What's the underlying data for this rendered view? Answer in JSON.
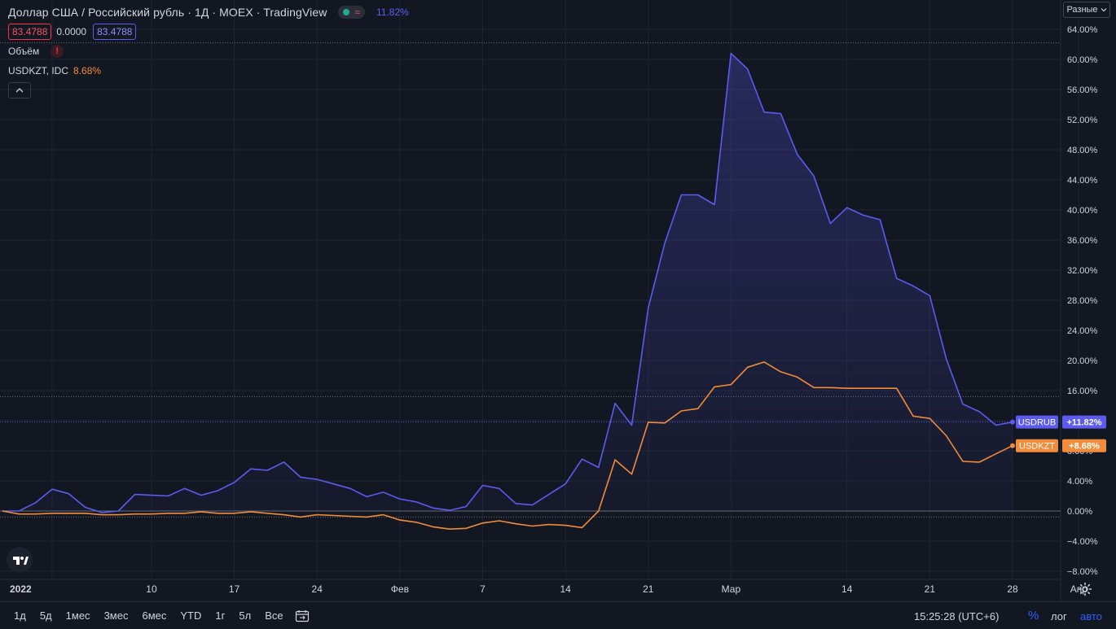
{
  "legend": {
    "title": "Доллар США / Российский рубль · 1Д · MOEX · TradingView",
    "percent": "11.82%",
    "price_red": "83.4788",
    "price_mid": "0.0000",
    "price_blue": "83.4788",
    "volume_label": "Объём",
    "volume_warning": "!",
    "compare_label": "USDKZT, IDC",
    "compare_value": "8.68%",
    "collapse_icon": "chevron-up-icon"
  },
  "scale_button": {
    "label": "Разные"
  },
  "bottombar": {
    "ranges": [
      "1д",
      "5д",
      "1мес",
      "3мес",
      "6мес",
      "YTD",
      "1г",
      "5л",
      "Все"
    ],
    "clock": "15:25:28 (UTC+6)",
    "percent_label": "%",
    "log_label": "лог",
    "auto_label": "авто"
  },
  "colors": {
    "background": "#131722",
    "grid": "#1f2433",
    "usdrub": "#5b5bf0",
    "usdkzt": "#f08c3a",
    "text": "#d1d4dc"
  },
  "chart_data": {
    "type": "line",
    "title": "Доллар США / Российский рубль · 1Д · MOEX · TradingView",
    "xlabel": "",
    "ylabel": "",
    "y_unit": "%",
    "ylim": [
      -8.5,
      65.5
    ],
    "y_ticks": [
      "64.00%",
      "60.00%",
      "56.00%",
      "52.00%",
      "48.00%",
      "44.00%",
      "40.00%",
      "36.00%",
      "32.00%",
      "28.00%",
      "24.00%",
      "20.00%",
      "16.00%",
      "12.00%",
      "8.00%",
      "4.00%",
      "0.00%",
      "−4.00%",
      "−8.00%"
    ],
    "y_tick_values": [
      64,
      60,
      56,
      52,
      48,
      44,
      40,
      36,
      32,
      28,
      24,
      20,
      16,
      12,
      8,
      4,
      0,
      -4,
      -8
    ],
    "x_ticks": [
      "2022",
      "10",
      "17",
      "24",
      "Фев",
      "7",
      "14",
      "21",
      "Мар",
      "14",
      "21",
      "28",
      "Апр"
    ],
    "x_tick_positions": [
      3,
      9,
      14,
      19,
      24,
      29,
      34,
      39,
      44,
      51,
      56,
      61,
      65
    ],
    "grid": true,
    "series": [
      {
        "name": "USDRUB",
        "label": "+11.82%",
        "last": 11.82,
        "values": [
          0,
          0,
          1.1,
          2.9,
          2.3,
          0.5,
          -0.2,
          0,
          2.2,
          2.1,
          2.0,
          3.0,
          2.1,
          2.7,
          3.8,
          5.6,
          5.4,
          6.5,
          4.5,
          4.2,
          3.6,
          3.0,
          1.9,
          2.5,
          1.6,
          1.2,
          0.4,
          0.1,
          0.6,
          3.4,
          3.0,
          1.0,
          0.8,
          2.2,
          3.6,
          6.9,
          5.8,
          14.3,
          11.4,
          27.0,
          35.6,
          42.0,
          42.0,
          40.7,
          60.8,
          58.7,
          53.0,
          52.8,
          47.4,
          44.5,
          38.2,
          40.3,
          39.3,
          38.7,
          30.9,
          29.9,
          28.6,
          20.2,
          14.2,
          13.2,
          11.4,
          11.82
        ]
      },
      {
        "name": "USDKZT",
        "label": "+8.68%",
        "last": 8.68,
        "values": [
          0,
          -0.4,
          -0.4,
          -0.3,
          -0.3,
          -0.3,
          -0.5,
          -0.5,
          -0.4,
          -0.4,
          -0.3,
          -0.3,
          -0.1,
          -0.3,
          -0.3,
          -0.1,
          -0.3,
          -0.5,
          -0.8,
          -0.5,
          -0.6,
          -0.7,
          -0.8,
          -0.5,
          -1.2,
          -1.5,
          -2.1,
          -2.4,
          -2.3,
          -1.6,
          -1.3,
          -1.7,
          -2.0,
          -1.8,
          -1.9,
          -2.2,
          0.0,
          6.8,
          4.9,
          11.8,
          11.7,
          13.3,
          13.6,
          16.5,
          16.8,
          19.1,
          19.8,
          18.5,
          17.8,
          16.4,
          16.4,
          16.3,
          16.3,
          16.3,
          16.3,
          12.6,
          12.3,
          10.0,
          6.6,
          6.5,
          7.6,
          8.68
        ]
      }
    ],
    "reference_lines": [
      62.2,
      15.2,
      11.82,
      -0.8
    ]
  }
}
